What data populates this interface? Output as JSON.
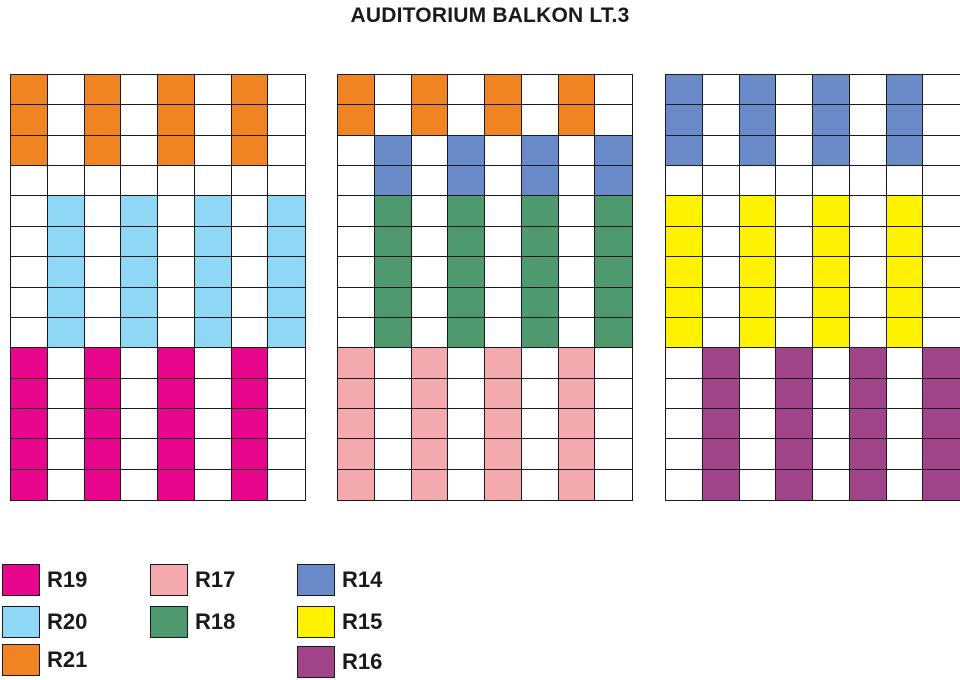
{
  "title": "AUDITORIUM BALKON LT.3",
  "colors": {
    "R14": "#6a8bc9",
    "R15": "#fff200",
    "R16": "#a1448a",
    "R17": "#f4a9ae",
    "R18": "#4e9a6e",
    "R19": "#e8068c",
    "R20": "#8ed8f5",
    "R21": "#f08322"
  },
  "blocks": [
    {
      "name": "block-left",
      "groups": [
        {
          "section": "R21",
          "rows": [
            0,
            1,
            2
          ],
          "cols": [
            0,
            2,
            4,
            6
          ]
        },
        {
          "section": "R20",
          "rows": [
            4,
            5,
            6,
            7,
            8
          ],
          "cols": [
            1,
            3,
            5,
            7
          ]
        },
        {
          "section": "R19",
          "rows": [
            9,
            10,
            11,
            12,
            13
          ],
          "cols": [
            0,
            2,
            4,
            6
          ]
        }
      ]
    },
    {
      "name": "block-center",
      "groups": [
        {
          "section": "R21",
          "rows": [
            0,
            1
          ],
          "cols": [
            0,
            2,
            4,
            6
          ]
        },
        {
          "section": "R14",
          "rows": [
            2,
            3
          ],
          "cols": [
            1,
            3,
            5,
            7
          ]
        },
        {
          "section": "R18",
          "rows": [
            4,
            5,
            6,
            7,
            8
          ],
          "cols": [
            1,
            3,
            5,
            7
          ]
        },
        {
          "section": "R17",
          "rows": [
            9,
            10,
            11,
            12,
            13
          ],
          "cols": [
            0,
            2,
            4,
            6
          ]
        }
      ]
    },
    {
      "name": "block-right",
      "groups": [
        {
          "section": "R14",
          "rows": [
            0,
            1,
            2
          ],
          "cols": [
            0,
            2,
            4,
            6
          ]
        },
        {
          "section": "R15",
          "rows": [
            4,
            5,
            6,
            7,
            8
          ],
          "cols": [
            0,
            2,
            4,
            6
          ]
        },
        {
          "section": "R16",
          "rows": [
            9,
            10,
            11,
            12,
            13
          ],
          "cols": [
            1,
            3,
            5,
            7
          ]
        }
      ]
    }
  ],
  "legend": [
    {
      "label": "R19",
      "section": "R19"
    },
    {
      "label": "R20",
      "section": "R20"
    },
    {
      "label": "R21",
      "section": "R21"
    },
    {
      "label": "R17",
      "section": "R17"
    },
    {
      "label": "R18",
      "section": "R18"
    },
    {
      "label": "R14",
      "section": "R14"
    },
    {
      "label": "R15",
      "section": "R15"
    },
    {
      "label": "R16",
      "section": "R16"
    }
  ]
}
